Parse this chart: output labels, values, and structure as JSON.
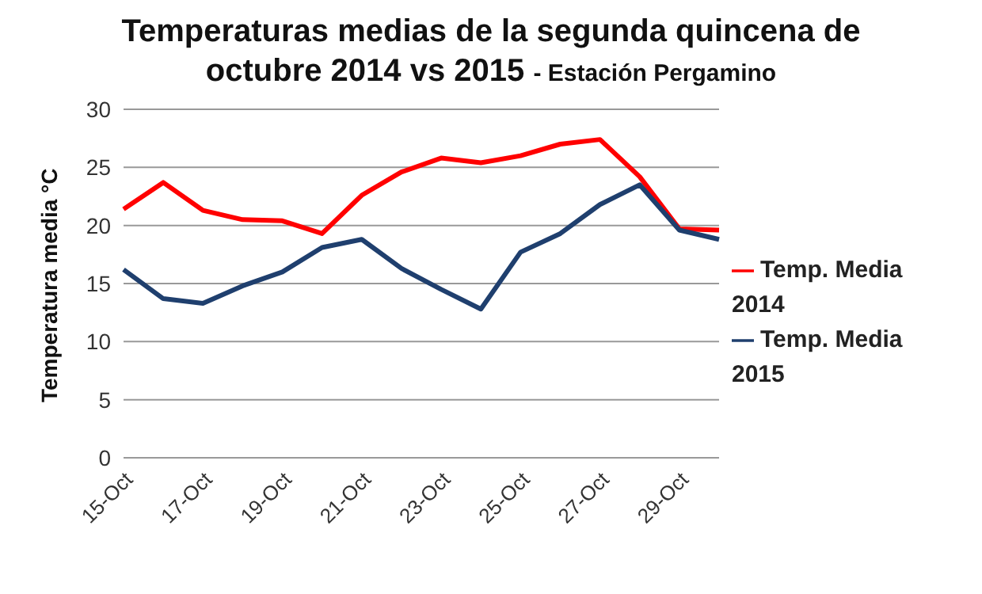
{
  "chart_data": {
    "type": "line",
    "title": "Temperaturas medias de la segunda quincena de octubre 2014 vs 2015",
    "subtitle": "- Estación Pergamino",
    "ylabel": "Temperatura media °C",
    "categories": [
      "15-Oct",
      null,
      "17-Oct",
      null,
      "19-Oct",
      null,
      "21-Oct",
      null,
      "23-Oct",
      null,
      "25-Oct",
      null,
      "27-Oct",
      null,
      "29-Oct",
      null
    ],
    "series": [
      {
        "name": "Temp. Media 2014",
        "color": "#ff0000",
        "values": [
          21.4,
          23.7,
          21.3,
          20.5,
          20.4,
          19.3,
          22.6,
          24.6,
          25.8,
          25.4,
          26.0,
          27.0,
          27.4,
          24.2,
          19.7,
          19.6
        ]
      },
      {
        "name": "Temp. Media 2015",
        "color": "#1f3f6e",
        "values": [
          16.2,
          13.7,
          13.3,
          14.8,
          16.0,
          18.1,
          18.8,
          16.3,
          14.5,
          12.8,
          17.7,
          19.3,
          21.8,
          23.5,
          19.6,
          18.8
        ]
      }
    ],
    "ylim": [
      0,
      30
    ],
    "yticks": [
      0,
      5,
      10,
      15,
      20,
      25,
      30
    ],
    "grid": "y",
    "legend": "right",
    "marker": "none",
    "line_style": "solid"
  }
}
